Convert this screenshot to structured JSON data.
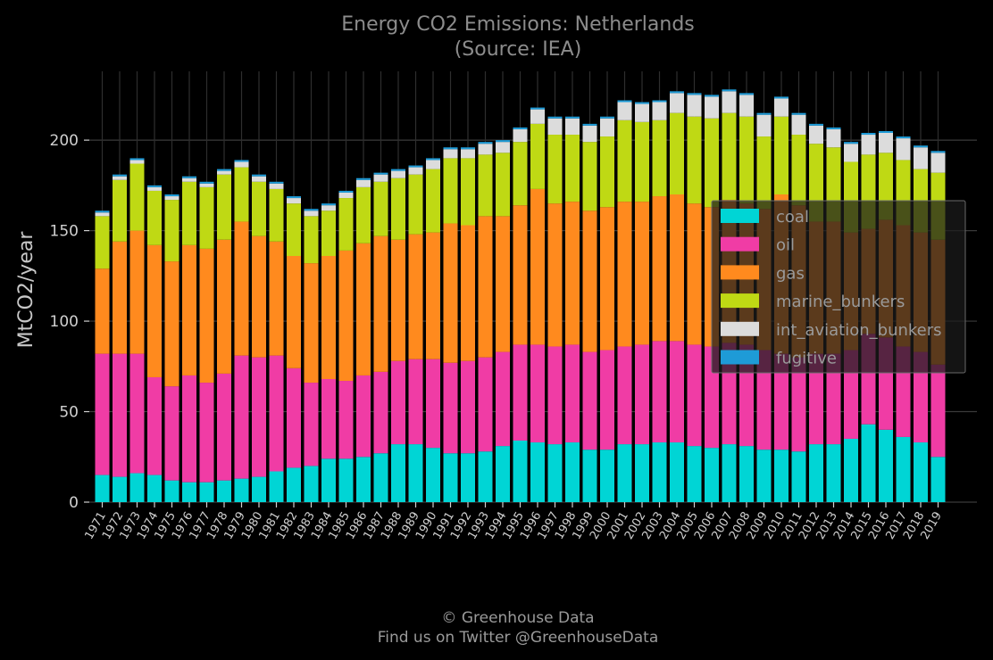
{
  "chart_data": {
    "type": "bar",
    "stacked": true,
    "title": "Energy CO2 Emissions: Netherlands",
    "subtitle": "(Source: IEA)",
    "xlabel": "",
    "ylabel": "MtCO2/year",
    "ylim": [
      0,
      238
    ],
    "yticks": [
      0,
      50,
      100,
      150,
      200
    ],
    "grid": true,
    "legend_position": "center-right",
    "categories": [
      "1971",
      "1972",
      "1973",
      "1974",
      "1975",
      "1976",
      "1977",
      "1978",
      "1979",
      "1980",
      "1981",
      "1982",
      "1983",
      "1984",
      "1985",
      "1986",
      "1987",
      "1988",
      "1989",
      "1990",
      "1991",
      "1992",
      "1993",
      "1994",
      "1995",
      "1996",
      "1997",
      "1998",
      "1999",
      "2000",
      "2001",
      "2002",
      "2003",
      "2004",
      "2005",
      "2006",
      "2007",
      "2008",
      "2009",
      "2010",
      "2011",
      "2012",
      "2013",
      "2014",
      "2015",
      "2016",
      "2017",
      "2018",
      "2019"
    ],
    "series": [
      {
        "name": "coal",
        "color": "#00d5d5",
        "values": [
          15,
          14,
          16,
          15,
          12,
          11,
          11,
          12,
          13,
          14,
          17,
          19,
          20,
          24,
          24,
          25,
          27,
          32,
          32,
          30,
          27,
          27,
          28,
          31,
          34,
          33,
          32,
          33,
          29,
          29,
          32,
          32,
          33,
          33,
          31,
          30,
          32,
          31,
          29,
          29,
          28,
          32,
          32,
          35,
          43,
          40,
          36,
          33,
          25
        ]
      },
      {
        "name": "oil",
        "color": "#f03ca5",
        "values": [
          67,
          68,
          66,
          54,
          52,
          59,
          55,
          59,
          68,
          66,
          64,
          55,
          46,
          44,
          43,
          45,
          45,
          46,
          47,
          49,
          50,
          51,
          52,
          52,
          53,
          54,
          54,
          54,
          54,
          55,
          54,
          55,
          56,
          56,
          56,
          56,
          56,
          56,
          55,
          53,
          52,
          50,
          50,
          49,
          50,
          51,
          50,
          50,
          51
        ]
      },
      {
        "name": "gas",
        "color": "#ff8a1e",
        "values": [
          47,
          62,
          68,
          73,
          69,
          72,
          74,
          74,
          74,
          67,
          63,
          62,
          66,
          68,
          72,
          73,
          75,
          67,
          69,
          70,
          77,
          75,
          78,
          75,
          77,
          86,
          79,
          79,
          78,
          79,
          80,
          79,
          80,
          81,
          78,
          77,
          79,
          78,
          78,
          88,
          84,
          73,
          73,
          65,
          58,
          65,
          67,
          66,
          69
        ]
      },
      {
        "name": "marine_bunkers",
        "color": "#bfd914",
        "values": [
          29,
          34,
          37,
          30,
          34,
          35,
          34,
          36,
          30,
          30,
          29,
          29,
          26,
          25,
          29,
          31,
          30,
          34,
          33,
          35,
          36,
          37,
          34,
          35,
          35,
          36,
          38,
          37,
          38,
          39,
          45,
          44,
          42,
          45,
          48,
          49,
          48,
          48,
          40,
          43,
          39,
          43,
          41,
          39,
          41,
          37,
          36,
          35,
          37
        ]
      },
      {
        "name": "int_aviation_bunkers",
        "color": "#dcdcdc",
        "values": [
          2,
          2,
          2,
          2,
          2,
          2,
          2,
          2,
          3,
          3,
          3,
          3,
          3,
          3,
          3,
          4,
          4,
          4,
          4,
          5,
          5,
          5,
          6,
          6,
          7,
          8,
          9,
          9,
          9,
          10,
          10,
          10,
          10,
          11,
          12,
          12,
          12,
          12,
          12,
          10,
          11,
          10,
          10,
          10,
          11,
          11,
          12,
          12,
          11
        ]
      },
      {
        "name": "fugitive",
        "color": "#1e9bd7",
        "values": [
          1,
          1,
          1,
          1,
          1,
          1,
          1,
          1,
          1,
          1,
          1,
          1,
          1,
          1,
          1,
          1,
          1,
          1,
          1,
          1,
          1,
          1,
          1,
          1,
          1,
          1,
          1,
          1,
          1,
          1,
          1,
          1,
          1,
          1,
          1,
          1,
          1,
          1,
          1,
          1,
          1,
          1,
          1,
          1,
          1,
          1,
          1,
          1,
          1
        ]
      }
    ]
  },
  "footer": {
    "line1": "© Greenhouse Data",
    "line2": "Find us on Twitter @GreenhouseData"
  }
}
